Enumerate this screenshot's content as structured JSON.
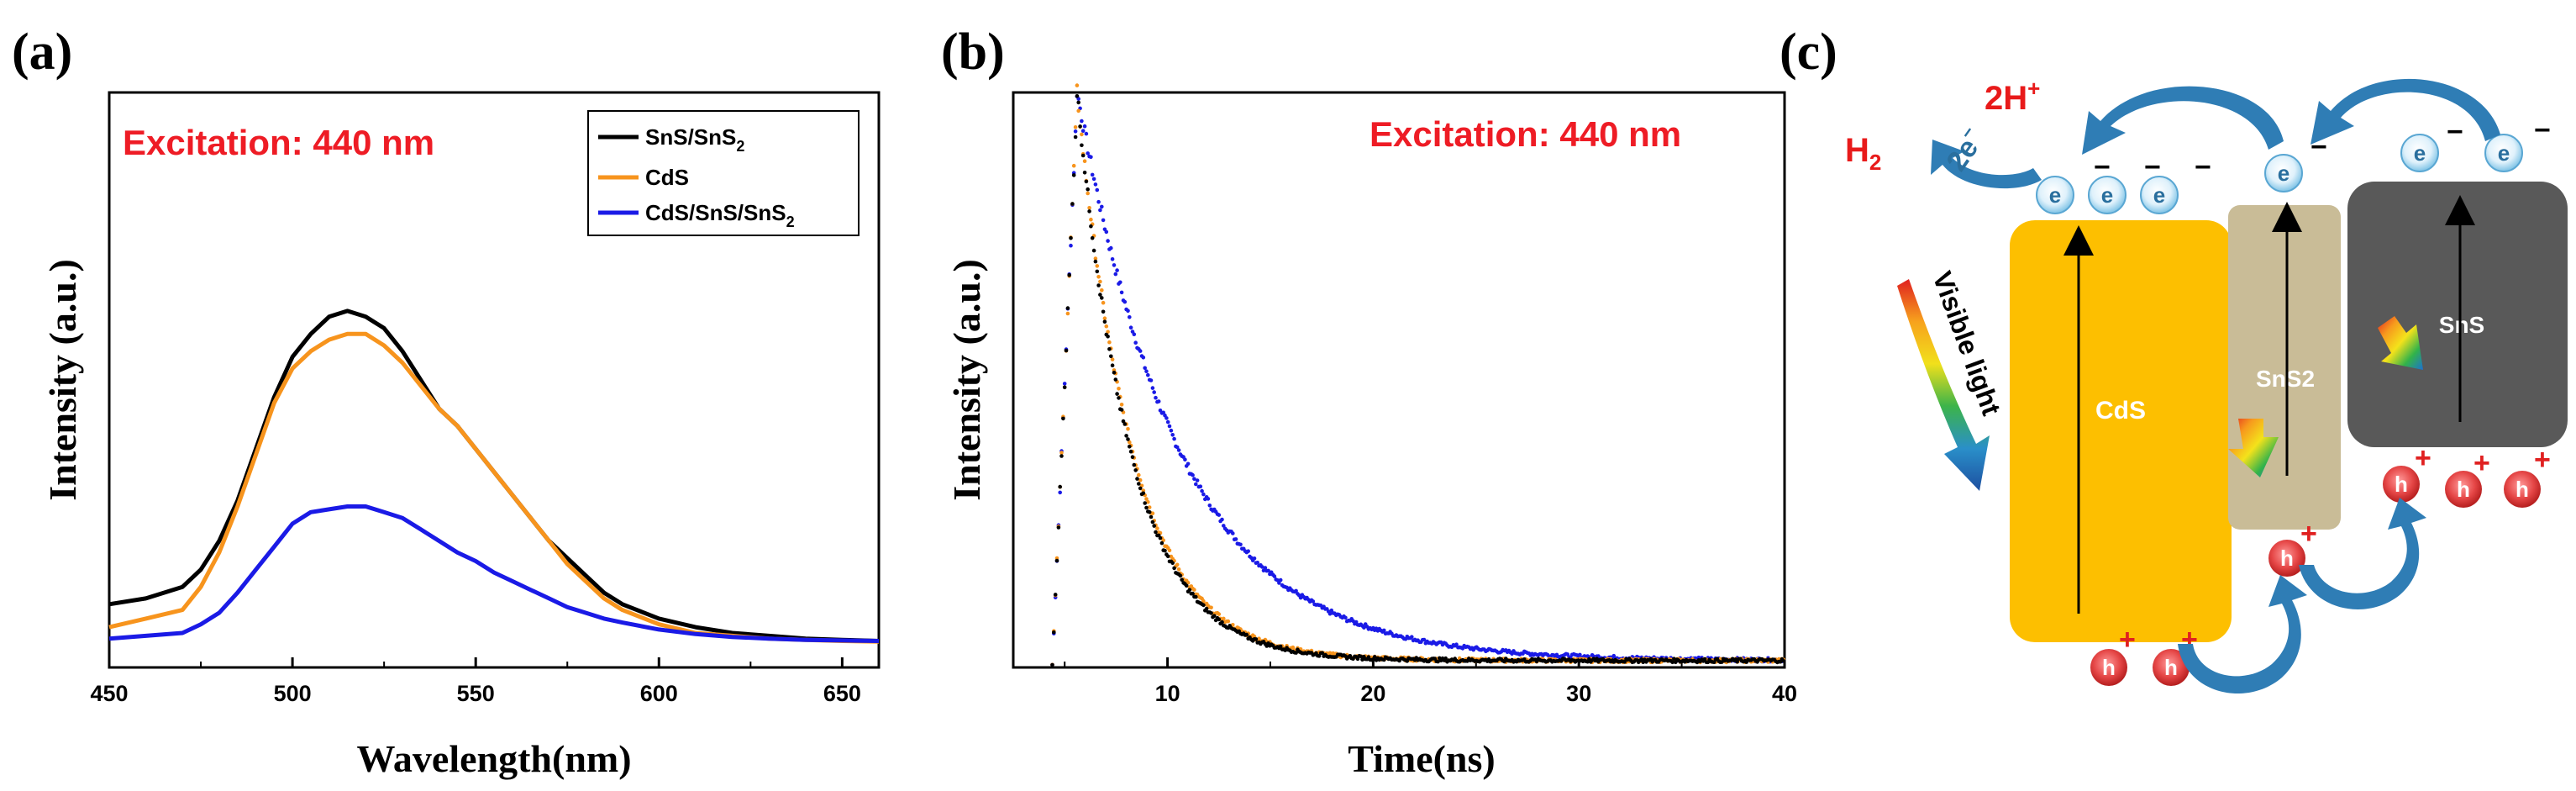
{
  "panel_labels": {
    "a": "(a)",
    "b": "(b)",
    "c": "(c)"
  },
  "chart_data": [
    {
      "type": "line",
      "panel": "(a)",
      "title": "",
      "annotation": "Excitation: 440 nm",
      "xlabel": "Wavelength(nm)",
      "ylabel": "Intensity (a.u.)",
      "xlim": [
        450,
        660
      ],
      "ylim": [
        0,
        1
      ],
      "x_ticks": [
        450,
        500,
        550,
        600,
        650
      ],
      "legend_position": "top-right",
      "x": [
        450,
        460,
        470,
        475,
        480,
        485,
        490,
        495,
        500,
        505,
        510,
        515,
        520,
        525,
        530,
        535,
        540,
        545,
        550,
        555,
        560,
        565,
        570,
        575,
        580,
        585,
        590,
        600,
        610,
        620,
        630,
        640,
        650,
        660
      ],
      "series": [
        {
          "name": "SnS/SnS",
          "name_sub": "2",
          "color": "#000000",
          "values": [
            0.11,
            0.12,
            0.14,
            0.17,
            0.22,
            0.29,
            0.38,
            0.47,
            0.54,
            0.58,
            0.61,
            0.62,
            0.61,
            0.59,
            0.55,
            0.5,
            0.45,
            0.42,
            0.38,
            0.34,
            0.3,
            0.26,
            0.22,
            0.19,
            0.16,
            0.13,
            0.11,
            0.085,
            0.07,
            0.06,
            0.055,
            0.05,
            0.048,
            0.046
          ]
        },
        {
          "name": "CdS",
          "name_sub": "",
          "color": "#f7941d",
          "values": [
            0.07,
            0.085,
            0.1,
            0.14,
            0.2,
            0.28,
            0.37,
            0.46,
            0.52,
            0.55,
            0.57,
            0.58,
            0.58,
            0.56,
            0.53,
            0.49,
            0.45,
            0.42,
            0.38,
            0.34,
            0.3,
            0.26,
            0.22,
            0.18,
            0.15,
            0.12,
            0.1,
            0.075,
            0.06,
            0.055,
            0.05,
            0.048,
            0.046,
            0.045
          ]
        },
        {
          "name": "CdS/SnS/SnS",
          "name_sub": "2",
          "color": "#1a1ae6",
          "values": [
            0.05,
            0.055,
            0.06,
            0.075,
            0.095,
            0.13,
            0.17,
            0.21,
            0.25,
            0.27,
            0.275,
            0.28,
            0.28,
            0.27,
            0.26,
            0.24,
            0.22,
            0.2,
            0.185,
            0.165,
            0.15,
            0.135,
            0.12,
            0.105,
            0.095,
            0.085,
            0.078,
            0.066,
            0.058,
            0.053,
            0.05,
            0.048,
            0.047,
            0.046
          ]
        }
      ]
    },
    {
      "type": "scatter",
      "panel": "(b)",
      "title": "",
      "annotation": "Excitation: 440 nm",
      "xlabel": "Time(ns)",
      "ylabel": "Intensity (a.u.)",
      "xlim": [
        2.5,
        40
      ],
      "ylim": [
        0,
        1
      ],
      "x_ticks": [
        10,
        20,
        30,
        40
      ],
      "rise_start_ns": 4.4,
      "peak_time_ns": 5.6,
      "series": [
        {
          "name": "SnS/SnS2",
          "color": "#000000",
          "peak": 0.99,
          "decay_tau_ns": 2.6
        },
        {
          "name": "CdS",
          "color": "#f7941d",
          "peak": 0.99,
          "decay_tau_ns": 2.7
        },
        {
          "name": "CdS/SnS/SnS2",
          "color": "#1a1ae6",
          "peak": 0.99,
          "decay_tau_ns": 5.0
        }
      ]
    }
  ],
  "diagram": {
    "cds_label": "CdS",
    "sns2_label": "SnS2",
    "sns_label": "SnS",
    "visible_light_label": "Visible light",
    "h2_label": "H",
    "h2_sub": "2",
    "two_h_label": "2H",
    "two_h_sup": "+",
    "two_e_label": "2e",
    "two_e_sup": "−",
    "electron_symbol": "e",
    "hole_symbol": "h",
    "plus_sign": "+",
    "minus_sign": "−",
    "colors": {
      "cds": "#fdbf00",
      "sns2": "#c9bc97",
      "sns": "#595959",
      "arrow_blue": "#2f7db5",
      "hole_red": "#e54646"
    }
  }
}
